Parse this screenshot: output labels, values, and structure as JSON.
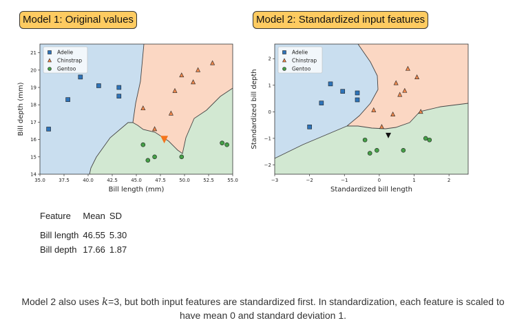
{
  "titles": {
    "model1": "Model 1: Original values",
    "model2": "Model 2: Standardized input features"
  },
  "legend_labels": [
    "Adelie",
    "Chinstrap",
    "Gentoo"
  ],
  "colors": {
    "adelie_region": "#c9deef",
    "chinstrap_region": "#fbd7c3",
    "gentoo_region": "#d2e8d2",
    "adelie_marker": "#2e73b8",
    "chinstrap_marker": "#f0884c",
    "gentoo_marker": "#45a047",
    "query_model1": "#f5741c",
    "query_model2": "#111111",
    "title_bg": "#fecb61"
  },
  "chart_data": [
    {
      "type": "scatter",
      "title": "Model 1: Original values",
      "xlabel": "Bill length (mm)",
      "ylabel": "Bill depth (mm)",
      "xlim": [
        35.0,
        55.0
      ],
      "ylim": [
        14,
        21.5
      ],
      "xticks": [
        "35.0",
        "37.5",
        "40.0",
        "42.5",
        "45.0",
        "47.5",
        "50.0",
        "52.5",
        "55.0"
      ],
      "yticks": [
        "14",
        "15",
        "16",
        "17",
        "18",
        "19",
        "20",
        "21"
      ],
      "legend_position": "top-left",
      "background": "k-nearest-neighbor decision regions",
      "series": [
        {
          "name": "Adelie",
          "marker": "square",
          "x": [
            35.9,
            37.9,
            39.2,
            41.1,
            43.2,
            43.2
          ],
          "y": [
            16.6,
            18.3,
            19.6,
            19.1,
            19.0,
            18.5
          ]
        },
        {
          "name": "Chinstrap",
          "marker": "triangle",
          "x": [
            45.7,
            46.9,
            48.6,
            49.0,
            49.7,
            50.9,
            51.4,
            52.9
          ],
          "y": [
            17.8,
            16.6,
            17.5,
            18.8,
            19.7,
            19.3,
            20.0,
            20.4
          ]
        },
        {
          "name": "Gentoo",
          "marker": "circle",
          "x": [
            45.7,
            46.2,
            46.9,
            49.7,
            53.9,
            54.4
          ],
          "y": [
            15.7,
            14.8,
            15.0,
            15.0,
            15.8,
            15.7
          ]
        }
      ],
      "query_point": {
        "x": 47.9,
        "y": 16.0
      }
    },
    {
      "type": "scatter",
      "title": "Model 2: Standardized input features",
      "xlabel": "Standardized bill length",
      "ylabel": "Standardized bill depth",
      "xlim": [
        -3.0,
        2.55
      ],
      "ylim": [
        -2.35,
        2.55
      ],
      "xticks": [
        "−3",
        "−2",
        "−1",
        "0",
        "1",
        "2"
      ],
      "yticks": [
        "−2",
        "−1",
        "0",
        "1",
        "2"
      ],
      "legend_position": "top-left",
      "background": "k-nearest-neighbor decision regions",
      "series": [
        {
          "name": "Adelie",
          "marker": "square",
          "x": [
            -2.0,
            -1.66,
            -1.4,
            -1.05,
            -0.63,
            -0.63
          ],
          "y": [
            -0.57,
            0.33,
            1.05,
            0.77,
            0.71,
            0.45
          ]
        },
        {
          "name": "Chinstrap",
          "marker": "triangle",
          "x": [
            -0.16,
            0.07,
            0.39,
            0.48,
            0.59,
            0.73,
            0.82,
            1.08,
            1.19
          ],
          "y": [
            0.06,
            -0.57,
            -0.1,
            1.08,
            0.64,
            0.79,
            1.62,
            1.3,
            0.0
          ]
        },
        {
          "name": "Gentoo",
          "marker": "circle",
          "x": [
            -0.41,
            -0.27,
            -0.07,
            0.69,
            1.33,
            1.44
          ],
          "y": [
            -1.06,
            -1.56,
            -1.45,
            -1.45,
            -1.0,
            -1.06
          ]
        }
      ],
      "query_point": {
        "x": 0.26,
        "y": -0.89
      }
    }
  ],
  "table": {
    "headers": [
      "Feature",
      "Mean",
      "SD"
    ],
    "rows": [
      [
        "Bill length",
        "46.55",
        "5.30"
      ],
      [
        "Bill depth",
        "17.66",
        "1.87"
      ]
    ]
  },
  "caption": {
    "before": "Model 2 also uses ",
    "k": "k",
    "after": "=3, but both input features are standardized first. In standardization, each feature is scaled to have mean 0 and standard deviation 1."
  }
}
